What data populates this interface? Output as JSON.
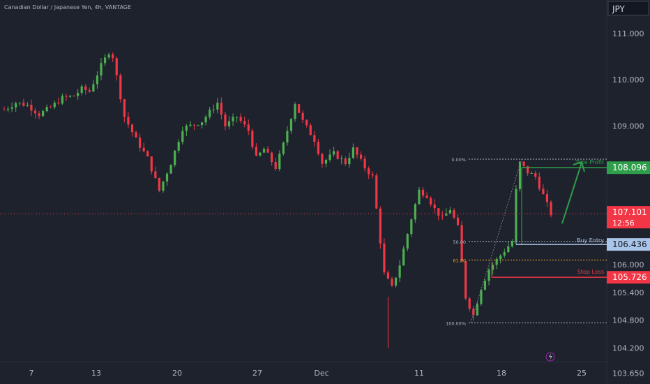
{
  "chart_data": {
    "type": "candlestick",
    "title": "Canadian Dollar / Japanese Yen, 4h, VANTAGE",
    "currency": "JPY",
    "y_axis_ticks": [
      "111.000",
      "110.000",
      "109.000",
      "106.000",
      "105.400",
      "104.800",
      "104.200",
      "103.650"
    ],
    "x_axis_ticks": [
      "7",
      "13",
      "20",
      "27",
      "Dec",
      "11",
      "18",
      "25"
    ],
    "price_tags": {
      "take_profit": "108.096",
      "current": "107.101",
      "countdown": "12:56",
      "buy_entry": "106.436",
      "stop_loss": "105.726"
    },
    "trade_labels": {
      "take_profit": "Take Profit",
      "buy_entry": "Buy Entry",
      "stop_loss": "Stop Loss"
    },
    "fib_labels": {
      "level_0": "0.00%",
      "level_50": "50.00",
      "level_618": "61.80",
      "level_100": "100.00%"
    },
    "levels": {
      "fib_0": 108.28,
      "take_profit": 108.096,
      "current": 107.101,
      "buy_entry": 106.436,
      "fib_50": 106.5,
      "fib_618": 106.1,
      "stop_loss": 105.726,
      "fib_100": 104.74
    },
    "y_range": [
      103.6,
      111.45
    ],
    "colors": {
      "up": "#26a69a",
      "up_candle": "#4caf50",
      "down": "#f23645",
      "take_profit": "#2e9e4a",
      "buy_entry": "#a9c5e8",
      "stop_loss": "#f23645",
      "current": "#f23645",
      "fib_618": "#f5a623"
    },
    "anchors": [
      [
        0,
        109.35
      ],
      [
        3,
        109.5
      ],
      [
        6,
        109.45
      ],
      [
        9,
        109.25
      ],
      [
        12,
        109.4
      ],
      [
        15,
        109.6
      ],
      [
        18,
        109.65
      ],
      [
        20,
        109.8
      ],
      [
        22,
        109.75
      ],
      [
        25,
        110.3
      ],
      [
        27,
        110.6
      ],
      [
        28,
        110.5
      ],
      [
        31,
        109.2
      ],
      [
        34,
        108.7
      ],
      [
        37,
        108.3
      ],
      [
        40,
        107.6
      ],
      [
        43,
        108.2
      ],
      [
        46,
        108.95
      ],
      [
        48,
        109.0
      ],
      [
        51,
        109.1
      ],
      [
        53,
        109.3
      ],
      [
        55,
        109.5
      ],
      [
        57,
        109.0
      ],
      [
        60,
        109.2
      ],
      [
        63,
        108.9
      ],
      [
        65,
        108.3
      ],
      [
        67,
        108.5
      ],
      [
        70,
        108.1
      ],
      [
        72,
        108.6
      ],
      [
        75,
        109.5
      ],
      [
        77,
        109.1
      ],
      [
        80,
        108.7
      ],
      [
        82,
        108.2
      ],
      [
        85,
        108.4
      ],
      [
        88,
        108.2
      ],
      [
        90,
        108.5
      ],
      [
        93,
        108.1
      ],
      [
        95,
        107.9
      ],
      [
        98,
        105.8
      ],
      [
        100,
        105.5
      ],
      [
        102,
        106.0
      ],
      [
        105,
        107.0
      ],
      [
        107,
        107.6
      ],
      [
        109,
        107.5
      ],
      [
        111,
        107.2
      ],
      [
        113,
        107.0
      ],
      [
        115,
        107.2
      ],
      [
        117,
        106.8
      ],
      [
        119,
        105.3
      ],
      [
        121,
        104.9
      ],
      [
        123,
        105.5
      ],
      [
        125,
        105.9
      ],
      [
        127,
        106.1
      ],
      [
        129,
        106.3
      ],
      [
        131,
        106.5
      ],
      [
        132,
        107.6
      ],
      [
        133,
        108.2
      ],
      [
        135,
        108.0
      ],
      [
        137,
        107.9
      ],
      [
        139,
        107.5
      ],
      [
        141,
        107.1
      ]
    ],
    "n_candles": 142
  }
}
